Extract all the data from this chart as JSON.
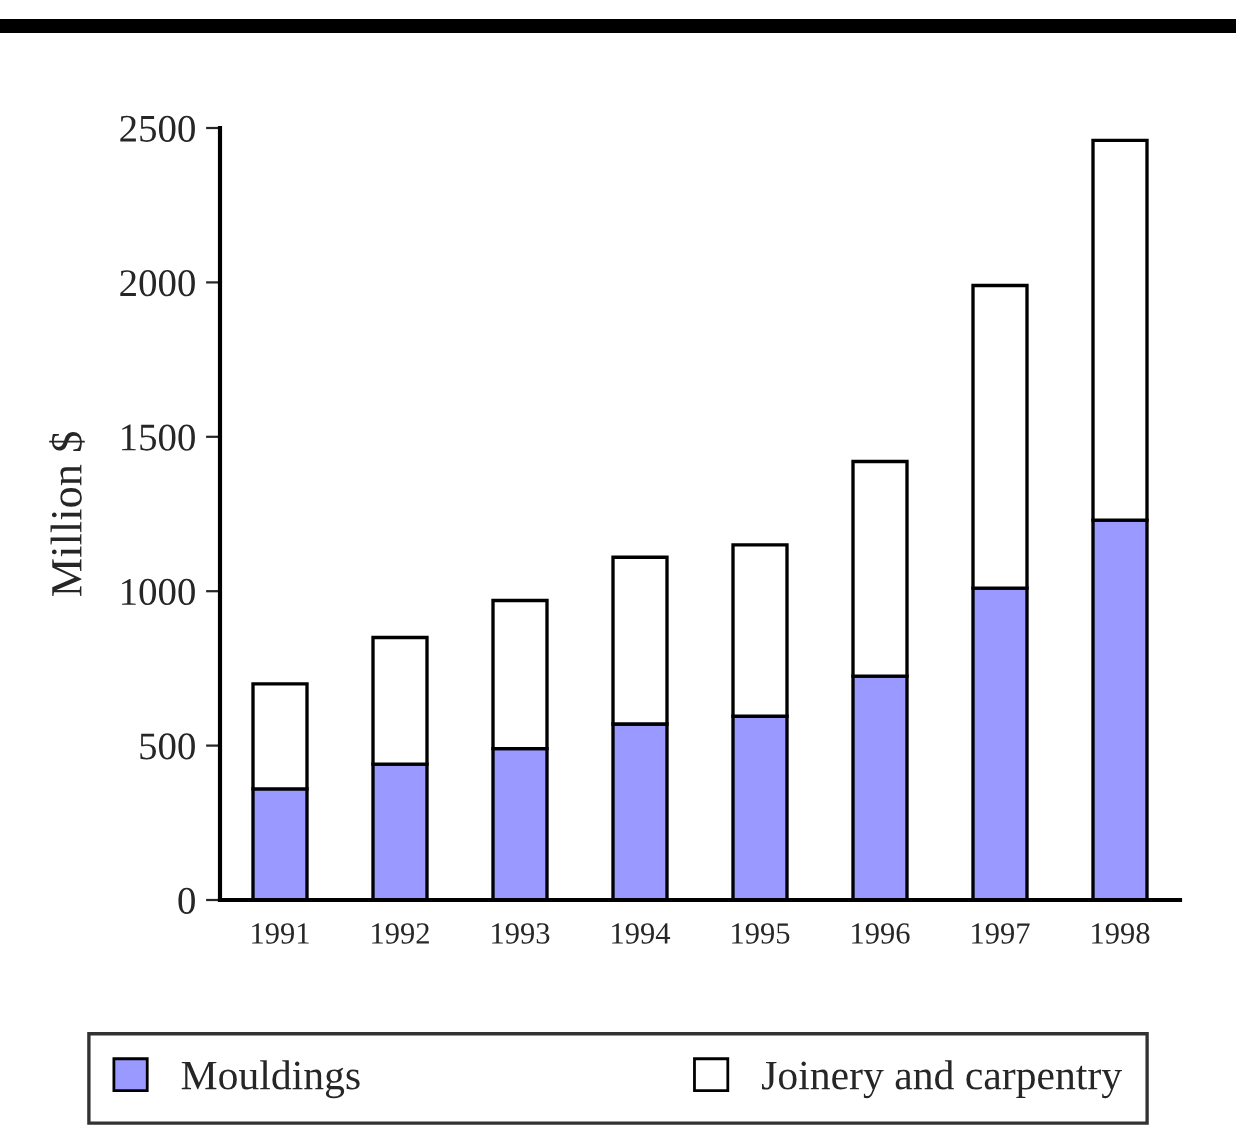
{
  "chart_data": {
    "type": "bar",
    "stacked": true,
    "ylabel": "Million $",
    "categories": [
      "1991",
      "1992",
      "1993",
      "1994",
      "1995",
      "1996",
      "1997",
      "1998"
    ],
    "series": [
      {
        "name": "Mouldings",
        "color": "#9999ff",
        "values": [
          360,
          440,
          490,
          570,
          595,
          725,
          1010,
          1230
        ]
      },
      {
        "name": "Joinery and carpentry",
        "color": "#ffffff",
        "values": [
          340,
          410,
          480,
          540,
          555,
          695,
          980,
          1230
        ]
      }
    ],
    "ylim": [
      0,
      2500
    ],
    "yticks": [
      0,
      500,
      1000,
      1500,
      2000,
      2500
    ],
    "grid": false,
    "legend": "bottom"
  }
}
